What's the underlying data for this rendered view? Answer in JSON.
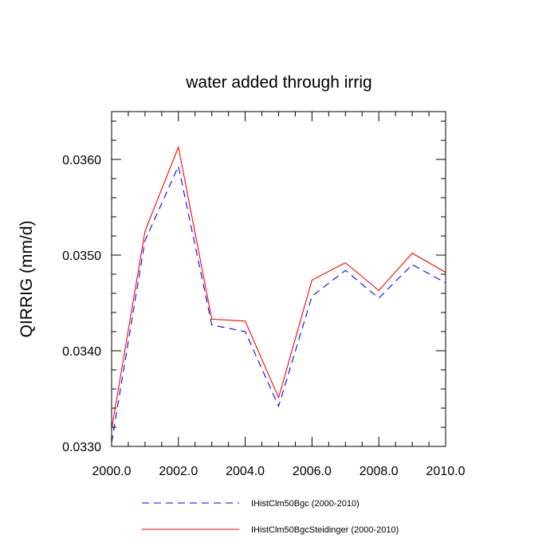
{
  "chart_data": {
    "type": "line",
    "title": "water added through irrig",
    "ylabel": "QIRRIG  (mm/d)",
    "xlabel": "",
    "xlim": [
      2000,
      2010
    ],
    "ylim": [
      0.033,
      0.0365
    ],
    "x_ticks": [
      2000,
      2002,
      2004,
      2006,
      2008,
      2010
    ],
    "x_tick_labels": [
      "2000.0",
      "2002.0",
      "2004.0",
      "2006.0",
      "2008.0",
      "2010.0"
    ],
    "y_ticks": [
      0.033,
      0.034,
      0.035,
      0.036
    ],
    "y_tick_labels": [
      "0.0330",
      "0.0340",
      "0.0350",
      "0.0360"
    ],
    "grid": false,
    "legend_position": "bottom",
    "x": [
      2000,
      2001,
      2002,
      2003,
      2004,
      2005,
      2006,
      2007,
      2008,
      2009,
      2010
    ],
    "series": [
      {
        "name": "IHistClm50Bgc (2000-2010)",
        "color": "#0000ff",
        "style": "dashed",
        "values": [
          0.03304,
          0.03515,
          0.03593,
          0.03427,
          0.0342,
          0.03342,
          0.03457,
          0.03484,
          0.03455,
          0.0349,
          0.03471
        ]
      },
      {
        "name": "IHistClm50BgcSteidinger (2000-2010)",
        "color": "#ff0000",
        "style": "solid",
        "values": [
          0.03318,
          0.03525,
          0.03613,
          0.03433,
          0.03431,
          0.03351,
          0.03474,
          0.03492,
          0.03463,
          0.03502,
          0.03482
        ]
      }
    ]
  }
}
